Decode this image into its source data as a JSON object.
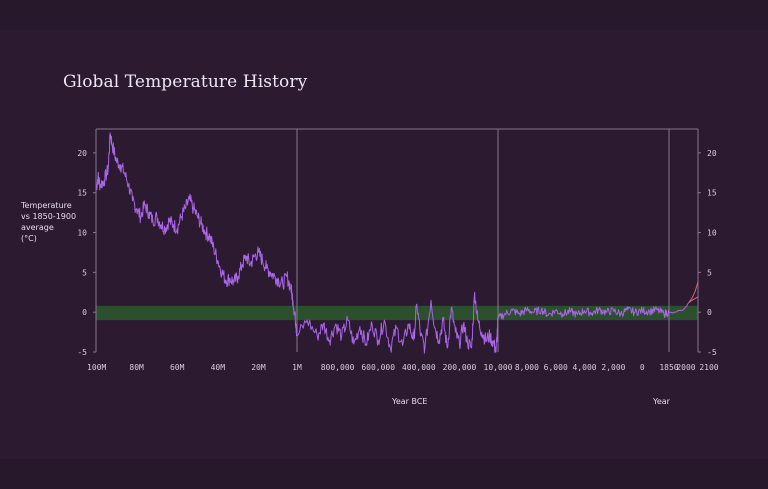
{
  "chart_data": {
    "type": "line",
    "title": "Global Temperature History",
    "ylabel": "Temperature vs 1850-1900 average (°C)",
    "ylim": [
      -5,
      23
    ],
    "y_ticks": [
      20,
      15,
      10,
      5,
      0,
      -5
    ],
    "grid": false,
    "band": {
      "from": -1,
      "to": 0.8,
      "color": "#2d5a2e"
    },
    "colors": {
      "main": "#a865e6",
      "projection": "#d9627a",
      "divider": "#8a7590",
      "axis": "#8a7590"
    },
    "panels": [
      {
        "name": "panel-million-years",
        "x_unit": "years BCE",
        "x_ticks": [
          "100M",
          "80M",
          "60M",
          "40M",
          "20M",
          "1M"
        ],
        "x_tick_values": [
          100000000,
          80000000,
          60000000,
          40000000,
          20000000,
          1000000
        ],
        "xlim": [
          100000000,
          1000000
        ],
        "points": [
          [
            100000000,
            15.5
          ],
          [
            99000000,
            17
          ],
          [
            98000000,
            16
          ],
          [
            96000000,
            16.5
          ],
          [
            94000000,
            18
          ],
          [
            93000000,
            22.5
          ],
          [
            92000000,
            21
          ],
          [
            90000000,
            19
          ],
          [
            88000000,
            18.5
          ],
          [
            86000000,
            17.5
          ],
          [
            84000000,
            16
          ],
          [
            82000000,
            14
          ],
          [
            80000000,
            13
          ],
          [
            78000000,
            12
          ],
          [
            76000000,
            13.5
          ],
          [
            74000000,
            12.5
          ],
          [
            72000000,
            11.5
          ],
          [
            70000000,
            12
          ],
          [
            68000000,
            11
          ],
          [
            66000000,
            10.5
          ],
          [
            64000000,
            11.5
          ],
          [
            62000000,
            11
          ],
          [
            60000000,
            10.5
          ],
          [
            58000000,
            12
          ],
          [
            56000000,
            13
          ],
          [
            54000000,
            14.2
          ],
          [
            52000000,
            13
          ],
          [
            50000000,
            12
          ],
          [
            48000000,
            11
          ],
          [
            46000000,
            10
          ],
          [
            44000000,
            9.5
          ],
          [
            42000000,
            8
          ],
          [
            40000000,
            6.5
          ],
          [
            38000000,
            5
          ],
          [
            36000000,
            4
          ],
          [
            34000000,
            4.2
          ],
          [
            32000000,
            3.8
          ],
          [
            30000000,
            4.5
          ],
          [
            28000000,
            6
          ],
          [
            26000000,
            7
          ],
          [
            24000000,
            6
          ],
          [
            22000000,
            7
          ],
          [
            20000000,
            7.5
          ],
          [
            18000000,
            6.5
          ],
          [
            16000000,
            5.5
          ],
          [
            14000000,
            5
          ],
          [
            12000000,
            4.5
          ],
          [
            10000000,
            4
          ],
          [
            8000000,
            3.5
          ],
          [
            6000000,
            4.5
          ],
          [
            4000000,
            3
          ],
          [
            3000000,
            1.5
          ],
          [
            2000000,
            -0.5
          ],
          [
            1500000,
            -1.5
          ],
          [
            1000000,
            -3
          ]
        ]
      },
      {
        "name": "panel-thousand-years",
        "x_unit": "years BCE",
        "x_ticks": [
          "800,000",
          "600,000",
          "400,000",
          "200,000",
          "10,000"
        ],
        "x_tick_values": [
          800000,
          600000,
          400000,
          200000,
          10000
        ],
        "xlim": [
          1000000,
          10000
        ],
        "points": [
          [
            1000000,
            -3
          ],
          [
            950000,
            -1
          ],
          [
            900000,
            -3
          ],
          [
            870000,
            -1.5
          ],
          [
            840000,
            -3.5
          ],
          [
            810000,
            -1.5
          ],
          [
            780000,
            -3
          ],
          [
            750000,
            -1
          ],
          [
            720000,
            -4
          ],
          [
            690000,
            -1.8
          ],
          [
            660000,
            -4
          ],
          [
            630000,
            -1.5
          ],
          [
            600000,
            -3.5
          ],
          [
            570000,
            -1
          ],
          [
            540000,
            -4.5
          ],
          [
            510000,
            -2
          ],
          [
            480000,
            -4.2
          ],
          [
            450000,
            -1.5
          ],
          [
            425000,
            -3.5
          ],
          [
            410000,
            1
          ],
          [
            390000,
            -3
          ],
          [
            370000,
            -4.5
          ],
          [
            340000,
            1.5
          ],
          [
            320000,
            -2
          ],
          [
            300000,
            -3.5
          ],
          [
            280000,
            -1
          ],
          [
            260000,
            -4.5
          ],
          [
            240000,
            0.5
          ],
          [
            220000,
            -2.5
          ],
          [
            200000,
            -4
          ],
          [
            180000,
            -1.5
          ],
          [
            160000,
            -3.8
          ],
          [
            140000,
            -4.5
          ],
          [
            125000,
            2.5
          ],
          [
            110000,
            -1
          ],
          [
            90000,
            -2.5
          ],
          [
            70000,
            -3.5
          ],
          [
            50000,
            -3
          ],
          [
            30000,
            -4
          ],
          [
            20000,
            -5
          ],
          [
            10000,
            -1
          ]
        ]
      },
      {
        "name": "panel-recent",
        "x_unit": "years BCE / CE",
        "x_ticks": [
          "8,000",
          "6,000",
          "4,000",
          "2,000",
          "0",
          "1850"
        ],
        "x_tick_values": [
          -8000,
          -6000,
          -4000,
          -2000,
          0,
          1850
        ],
        "xlim": [
          -10000,
          1850
        ],
        "points": [
          [
            -10000,
            -0.8
          ],
          [
            -9500,
            -0.2
          ],
          [
            -9000,
            0.2
          ],
          [
            -8500,
            -0.2
          ],
          [
            -8000,
            0.3
          ],
          [
            -7500,
            0
          ],
          [
            -7000,
            0.3
          ],
          [
            -6500,
            -0.3
          ],
          [
            -6000,
            0.2
          ],
          [
            -5500,
            -0.2
          ],
          [
            -5000,
            0.1
          ],
          [
            -4500,
            -0.3
          ],
          [
            -4000,
            0.2
          ],
          [
            -3500,
            -0.1
          ],
          [
            -3000,
            0.3
          ],
          [
            -2500,
            0
          ],
          [
            -2000,
            0.2
          ],
          [
            -1500,
            -0.2
          ],
          [
            -1000,
            0.3
          ],
          [
            -500,
            0
          ],
          [
            0,
            0.2
          ],
          [
            500,
            0.1
          ],
          [
            1000,
            0.3
          ],
          [
            1500,
            -0.2
          ],
          [
            1850,
            0
          ]
        ]
      },
      {
        "name": "panel-modern",
        "x_unit": "year",
        "x_ticks": [
          "2000",
          "2100"
        ],
        "x_tick_values": [
          2000,
          2100
        ],
        "xlim": [
          1850,
          2100
        ],
        "points": [
          [
            1850,
            0
          ],
          [
            1880,
            -0.1
          ],
          [
            1900,
            0
          ],
          [
            1920,
            0.1
          ],
          [
            1940,
            0.2
          ],
          [
            1960,
            0.2
          ],
          [
            1980,
            0.4
          ],
          [
            2000,
            0.7
          ],
          [
            2020,
            1.2
          ]
        ],
        "projections": [
          {
            "points": [
              [
                2020,
                1.2
              ],
              [
                2050,
                1.8
              ],
              [
                2075,
                2.6
              ],
              [
                2100,
                3.8
              ]
            ]
          },
          {
            "points": [
              [
                2020,
                1.2
              ],
              [
                2050,
                1.5
              ],
              [
                2075,
                1.7
              ],
              [
                2100,
                1.9
              ]
            ]
          }
        ]
      }
    ]
  },
  "labels": {
    "ylabel_lines": [
      "Temperature",
      "vs 1850-1900",
      "average",
      "(°C)"
    ],
    "xlabel_bce": "Year BCE",
    "xlabel_year": "Year",
    "tick_1850_2000": "1850  2000"
  }
}
